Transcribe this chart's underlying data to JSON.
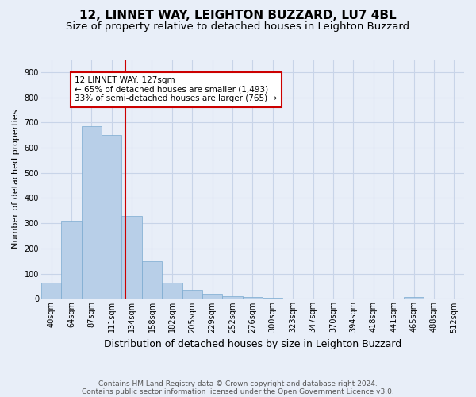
{
  "title_line1": "12, LINNET WAY, LEIGHTON BUZZARD, LU7 4BL",
  "title_line2": "Size of property relative to detached houses in Leighton Buzzard",
  "xlabel": "Distribution of detached houses by size in Leighton Buzzard",
  "ylabel": "Number of detached properties",
  "footnote_line1": "Contains HM Land Registry data © Crown copyright and database right 2024.",
  "footnote_line2": "Contains public sector information licensed under the Open Government Licence v3.0.",
  "bar_labels": [
    "40sqm",
    "64sqm",
    "87sqm",
    "111sqm",
    "134sqm",
    "158sqm",
    "182sqm",
    "205sqm",
    "229sqm",
    "252sqm",
    "276sqm",
    "300sqm",
    "323sqm",
    "347sqm",
    "370sqm",
    "394sqm",
    "418sqm",
    "441sqm",
    "465sqm",
    "488sqm",
    "512sqm"
  ],
  "bar_values": [
    65,
    310,
    685,
    650,
    330,
    150,
    65,
    35,
    20,
    10,
    7,
    5,
    0,
    0,
    0,
    0,
    0,
    0,
    8,
    0,
    0
  ],
  "bar_color": "#b8cfe8",
  "bar_edge_color": "#7aaad0",
  "annotation_label": "12 LINNET WAY: 127sqm",
  "annotation_line1": "← 65% of detached houses are smaller (1,493)",
  "annotation_line2": "33% of semi-detached houses are larger (765) →",
  "annotation_box_color": "#ffffff",
  "annotation_box_edge": "#cc0000",
  "vline_color": "#cc0000",
  "ylim": [
    0,
    950
  ],
  "yticks": [
    0,
    100,
    200,
    300,
    400,
    500,
    600,
    700,
    800,
    900
  ],
  "grid_color": "#c8d4e8",
  "background_color": "#e8eef8",
  "title1_fontsize": 11,
  "title2_fontsize": 9.5,
  "xlabel_fontsize": 9,
  "ylabel_fontsize": 8,
  "tick_fontsize": 7,
  "annotation_fontsize": 7.5,
  "footnote_fontsize": 6.5,
  "vline_x_index": 3.696
}
